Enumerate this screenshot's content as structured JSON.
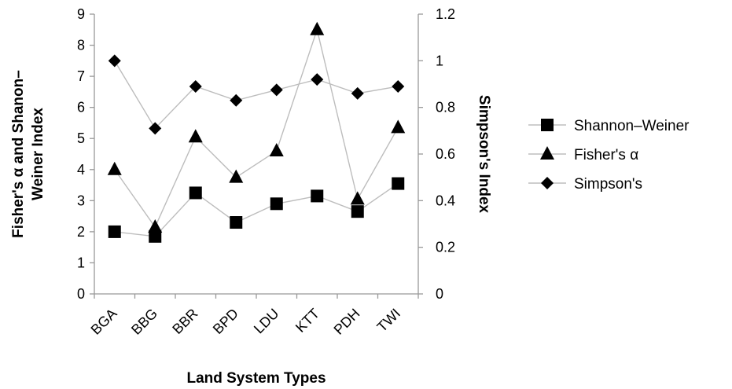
{
  "chart_data": {
    "type": "line",
    "categories": [
      "BGA",
      "BBG",
      "BBR",
      "BPD",
      "LDU",
      "KTT",
      "PDH",
      "TWI"
    ],
    "xlabel": "Land System Types",
    "ylabel_left": [
      "Fisher's α and Shanon–",
      "Weiner Index"
    ],
    "ylabel_right": "Simpson's Index",
    "ylim_left": [
      0,
      9
    ],
    "yticks_left": [
      "0",
      "1",
      "2",
      "3",
      "4",
      "5",
      "6",
      "7",
      "8",
      "9"
    ],
    "ylim_right": [
      0,
      1.2
    ],
    "yticks_right": [
      "0",
      "0.2",
      "0.4",
      "0.6",
      "0.8",
      "1",
      "1.2"
    ],
    "grid": false,
    "legend_position": "right",
    "series": [
      {
        "name": "Shannon–Weiner",
        "axis": "left",
        "marker": "square",
        "values": [
          2.0,
          1.85,
          3.25,
          2.3,
          2.9,
          3.15,
          2.65,
          3.55
        ]
      },
      {
        "name": "Fisher's α",
        "axis": "left",
        "marker": "triangle",
        "values": [
          4.0,
          2.15,
          5.05,
          3.75,
          4.6,
          8.5,
          3.05,
          5.35
        ]
      },
      {
        "name": "Simpson's",
        "axis": "right",
        "marker": "diamond",
        "values": [
          1.0,
          0.71,
          0.89,
          0.83,
          0.875,
          0.92,
          0.86,
          0.89
        ]
      }
    ],
    "colors": {
      "markers": "#000000",
      "lines": "#bdbdbd",
      "axes": "#999999"
    }
  }
}
